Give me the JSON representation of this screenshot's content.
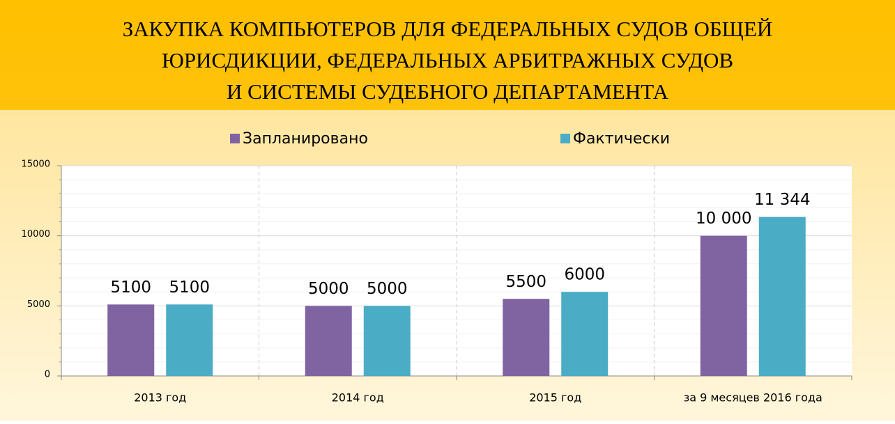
{
  "chart_data": {
    "type": "bar",
    "title": [
      "ЗАКУПКА КОМПЬЮТЕРОВ ДЛЯ ФЕДЕРАЛЬНЫХ СУДОВ ОБЩЕЙ",
      "ЮРИСДИКЦИИ, ФЕДЕРАЛЬНЫХ АРБИТРАЖНЫХ СУДОВ",
      "И СИСТЕМЫ СУДЕБНОГО ДЕПАРТАМЕНТА"
    ],
    "categories": [
      "2013 год",
      "2014 год",
      "2015 год",
      "за 9 месяцев 2016 года"
    ],
    "series": [
      {
        "name": "Запланировано",
        "color": "#8064a2",
        "values": [
          5100,
          5000,
          5500,
          10000
        ],
        "value_labels": [
          "5100",
          "5000",
          "5500",
          "10 000"
        ]
      },
      {
        "name": "Фактически",
        "color": "#4bacc6",
        "values": [
          5100,
          5000,
          6000,
          11344
        ],
        "value_labels": [
          "5100",
          "5000",
          "6000",
          "11 344"
        ]
      }
    ],
    "ylim": [
      0,
      15000
    ],
    "yticks": [
      0,
      5000,
      10000,
      15000
    ],
    "grid": true,
    "legend": "top"
  }
}
